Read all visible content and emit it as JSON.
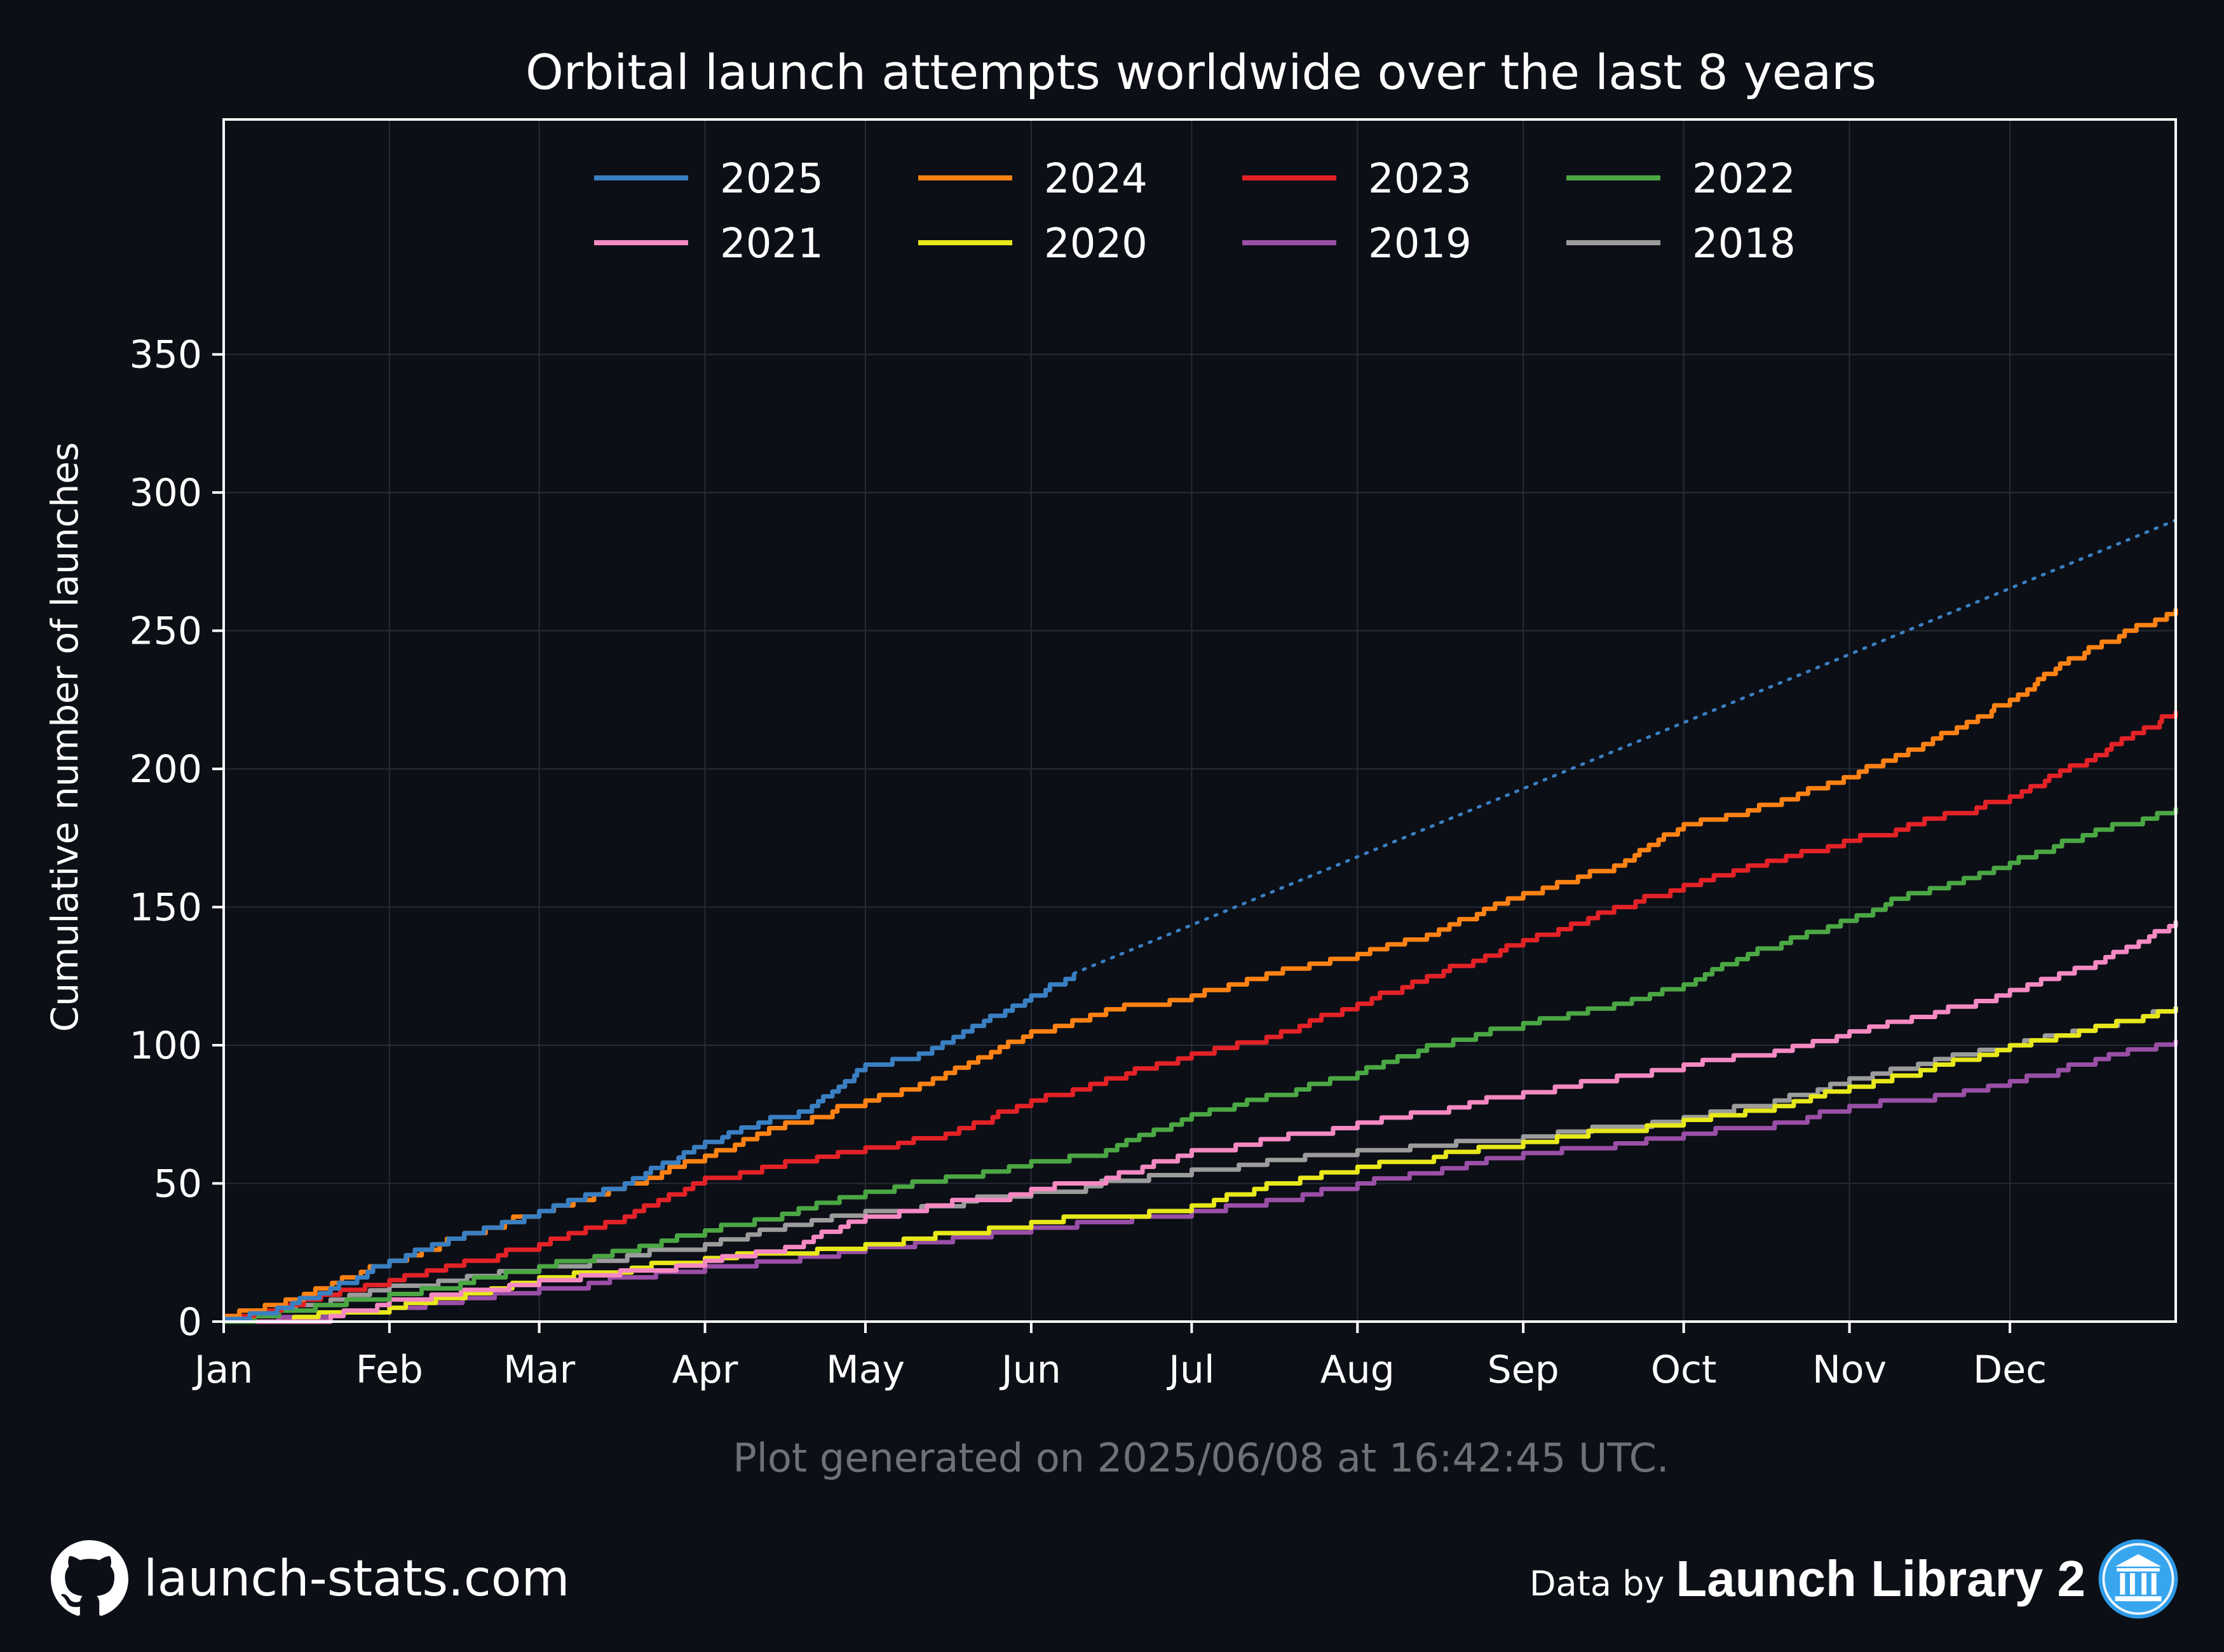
{
  "chart_data": {
    "type": "line",
    "title": "Orbital launch attempts worldwide over the last 8 years",
    "xlabel": "",
    "ylabel": "Cumulative number of launches",
    "x_ticks": [
      "Jan",
      "Feb",
      "Mar",
      "Apr",
      "May",
      "Jun",
      "Jul",
      "Aug",
      "Sep",
      "Oct",
      "Nov",
      "Dec"
    ],
    "x_tick_days": [
      0,
      31,
      59,
      90,
      120,
      151,
      181,
      212,
      243,
      273,
      304,
      334
    ],
    "xlim": [
      0,
      365
    ],
    "y_ticks": [
      0,
      50,
      100,
      150,
      200,
      250,
      300,
      350
    ],
    "ylim": [
      0,
      435
    ],
    "grid": true,
    "legend_position": "top-center",
    "x_unit": "day of year",
    "series": [
      {
        "name": "2025",
        "color": "#3a7fc1",
        "points": [
          [
            0,
            1
          ],
          [
            10,
            5
          ],
          [
            20,
            12
          ],
          [
            31,
            22
          ],
          [
            45,
            32
          ],
          [
            59,
            40
          ],
          [
            75,
            50
          ],
          [
            90,
            65
          ],
          [
            100,
            72
          ],
          [
            110,
            78
          ],
          [
            115,
            85
          ],
          [
            120,
            93
          ],
          [
            130,
            97
          ],
          [
            140,
            107
          ],
          [
            151,
            118
          ],
          [
            159,
            126
          ]
        ]
      },
      {
        "name": "2024",
        "color": "#ff8214",
        "points": [
          [
            0,
            2
          ],
          [
            15,
            10
          ],
          [
            31,
            22
          ],
          [
            45,
            32
          ],
          [
            59,
            40
          ],
          [
            75,
            50
          ],
          [
            90,
            60
          ],
          [
            105,
            72
          ],
          [
            120,
            80
          ],
          [
            135,
            90
          ],
          [
            151,
            105
          ],
          [
            165,
            113
          ],
          [
            181,
            118
          ],
          [
            195,
            126
          ],
          [
            212,
            133
          ],
          [
            225,
            140
          ],
          [
            243,
            155
          ],
          [
            260,
            165
          ],
          [
            273,
            180
          ],
          [
            285,
            185
          ],
          [
            300,
            195
          ],
          [
            315,
            207
          ],
          [
            334,
            225
          ],
          [
            345,
            240
          ],
          [
            365,
            258
          ]
        ]
      },
      {
        "name": "2023",
        "color": "#e32227",
        "points": [
          [
            0,
            2
          ],
          [
            15,
            8
          ],
          [
            31,
            15
          ],
          [
            45,
            22
          ],
          [
            59,
            28
          ],
          [
            75,
            38
          ],
          [
            90,
            52
          ],
          [
            105,
            58
          ],
          [
            120,
            63
          ],
          [
            135,
            68
          ],
          [
            151,
            80
          ],
          [
            165,
            88
          ],
          [
            181,
            97
          ],
          [
            195,
            103
          ],
          [
            212,
            115
          ],
          [
            225,
            125
          ],
          [
            243,
            138
          ],
          [
            260,
            150
          ],
          [
            273,
            158
          ],
          [
            285,
            165
          ],
          [
            300,
            172
          ],
          [
            315,
            180
          ],
          [
            334,
            190
          ],
          [
            350,
            205
          ],
          [
            365,
            221
          ]
        ]
      },
      {
        "name": "2022",
        "color": "#4ba744",
        "points": [
          [
            0,
            0
          ],
          [
            31,
            10
          ],
          [
            59,
            20
          ],
          [
            90,
            33
          ],
          [
            120,
            47
          ],
          [
            151,
            58
          ],
          [
            165,
            62
          ],
          [
            181,
            75
          ],
          [
            195,
            82
          ],
          [
            212,
            90
          ],
          [
            225,
            100
          ],
          [
            243,
            108
          ],
          [
            260,
            115
          ],
          [
            273,
            122
          ],
          [
            285,
            133
          ],
          [
            300,
            143
          ],
          [
            315,
            155
          ],
          [
            334,
            166
          ],
          [
            350,
            178
          ],
          [
            365,
            186
          ]
        ]
      },
      {
        "name": "2021",
        "color": "#f589c2",
        "points": [
          [
            0,
            0
          ],
          [
            20,
            2
          ],
          [
            31,
            8
          ],
          [
            59,
            15
          ],
          [
            90,
            22
          ],
          [
            105,
            27
          ],
          [
            120,
            38
          ],
          [
            151,
            48
          ],
          [
            165,
            52
          ],
          [
            181,
            62
          ],
          [
            212,
            72
          ],
          [
            243,
            83
          ],
          [
            273,
            93
          ],
          [
            290,
            98
          ],
          [
            304,
            105
          ],
          [
            320,
            112
          ],
          [
            334,
            120
          ],
          [
            350,
            130
          ],
          [
            365,
            145
          ]
        ]
      },
      {
        "name": "2020",
        "color": "#e8e81b",
        "points": [
          [
            0,
            0
          ],
          [
            31,
            5
          ],
          [
            50,
            12
          ],
          [
            59,
            16
          ],
          [
            90,
            23
          ],
          [
            120,
            28
          ],
          [
            151,
            36
          ],
          [
            181,
            42
          ],
          [
            195,
            50
          ],
          [
            212,
            56
          ],
          [
            243,
            65
          ],
          [
            273,
            73
          ],
          [
            290,
            78
          ],
          [
            304,
            85
          ],
          [
            320,
            93
          ],
          [
            334,
            100
          ],
          [
            350,
            107
          ],
          [
            365,
            114
          ]
        ]
      },
      {
        "name": "2019",
        "color": "#9a4fa6",
        "points": [
          [
            0,
            0
          ],
          [
            31,
            5
          ],
          [
            59,
            12
          ],
          [
            90,
            20
          ],
          [
            120,
            27
          ],
          [
            151,
            34
          ],
          [
            181,
            40
          ],
          [
            195,
            44
          ],
          [
            212,
            50
          ],
          [
            243,
            61
          ],
          [
            273,
            68
          ],
          [
            290,
            72
          ],
          [
            304,
            78
          ],
          [
            320,
            82
          ],
          [
            334,
            87
          ],
          [
            350,
            95
          ],
          [
            365,
            102
          ]
        ]
      },
      {
        "name": "2018",
        "color": "#9c9c9c",
        "points": [
          [
            0,
            0
          ],
          [
            20,
            8
          ],
          [
            31,
            13
          ],
          [
            59,
            20
          ],
          [
            90,
            28
          ],
          [
            105,
            35
          ],
          [
            120,
            40
          ],
          [
            151,
            47
          ],
          [
            181,
            55
          ],
          [
            212,
            62
          ],
          [
            243,
            67
          ],
          [
            273,
            74
          ],
          [
            290,
            80
          ],
          [
            304,
            88
          ],
          [
            320,
            95
          ],
          [
            334,
            100
          ],
          [
            350,
            107
          ],
          [
            365,
            114
          ]
        ]
      }
    ],
    "projection": {
      "series": "2025",
      "style": "dotted",
      "color": "#3a7fc1",
      "points": [
        [
          159,
          126
        ],
        [
          365,
          290
        ]
      ]
    }
  },
  "footer": {
    "generated": "Plot generated on 2025/06/08 at 16:42:45 UTC.",
    "site": "launch-stats.com",
    "data_by": "Data by",
    "source_name": "Launch Library 2",
    "github_icon": "github-icon",
    "source_icon": "museum-icon"
  }
}
